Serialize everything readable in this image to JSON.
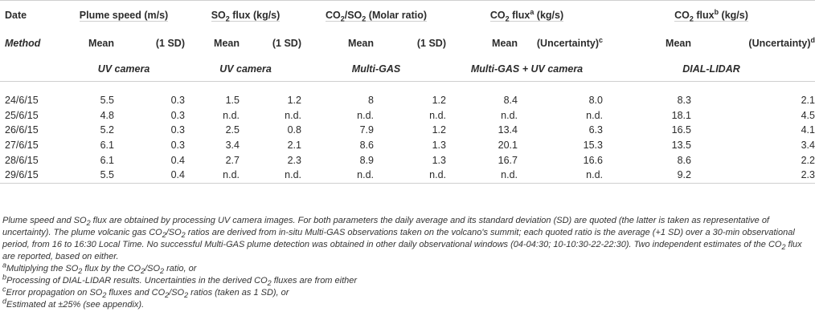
{
  "header": {
    "date": "Date",
    "method": "Method",
    "plume_speed": "Plume speed (m/s)",
    "so2_flux_a": "SO",
    "so2_flux_sub": "2",
    "so2_flux_b": " flux (kg/s)",
    "ratio_a": "CO",
    "ratio_sub1": "2",
    "ratio_b": "/SO",
    "ratio_sub2": "2",
    "ratio_c": " (Molar ratio)",
    "co2a_a": "CO",
    "co2a_sub": "2",
    "co2a_b": " flux",
    "co2a_sup": "a",
    "co2a_c": " (kg/s)",
    "co2b_a": "CO",
    "co2b_sub": "2",
    "co2b_b": " flux",
    "co2b_sup": "b",
    "co2b_c": " (kg/s)",
    "mean": "Mean",
    "sd": "(1 SD)",
    "uncertainty": "(Uncertainty)",
    "unc_sup_c": "c",
    "unc_sup_d": "d",
    "uv_camera": "UV camera",
    "multigas": "Multi-GAS",
    "multigas_uv": "Multi-GAS + UV camera",
    "dial_lidar": "DIAL-LIDAR"
  },
  "rows": [
    [
      "24/6/15",
      "5.5",
      "0.3",
      "1.5",
      "1.2",
      "8",
      "1.2",
      "8.4",
      "8.0",
      "8.3",
      "2.1"
    ],
    [
      "25/6/15",
      "4.8",
      "0.3",
      "n.d.",
      "n.d.",
      "n.d.",
      "n.d.",
      "n.d.",
      "n.d.",
      "18.1",
      "4.5"
    ],
    [
      "26/6/15",
      "5.2",
      "0.3",
      "2.5",
      "0.8",
      "7.9",
      "1.2",
      "13.4",
      "6.3",
      "16.5",
      "4.1"
    ],
    [
      "27/6/15",
      "6.1",
      "0.3",
      "3.4",
      "2.1",
      "8.6",
      "1.3",
      "20.1",
      "15.3",
      "13.5",
      "3.4"
    ],
    [
      "28/6/15",
      "6.1",
      "0.4",
      "2.7",
      "2.3",
      "8.9",
      "1.3",
      "16.7",
      "16.6",
      "8.6",
      "2.2"
    ],
    [
      "29/6/15",
      "5.5",
      "0.4",
      "n.d.",
      "n.d.",
      "n.d.",
      "n.d.",
      "n.d.",
      "n.d.",
      "9.2",
      "2.3"
    ]
  ],
  "notes": {
    "p1_a": "Plume speed and SO",
    "p1_sub1": "2",
    "p1_b": " flux are obtained by processing UV camera images. For both parameters the daily average and its standard deviation (SD) are quoted (the latter is taken as representative of uncertainty). The plume volcanic gas CO",
    "p1_sub2": "2",
    "p1_c": "/SO",
    "p1_sub3": "2",
    "p1_d": " ratios are derived from in-situ Multi-GAS observations taken on the volcano's summit; each quoted ratio is the average (+1 SD) over a 30-min observational period, from 16 to 16:30 Local Time. No successful Multi-GAS plume detection was obtained in other daily observational windows (04-04:30; 10-10:30-22-22:30). Two independent estimates of the CO",
    "p1_sub4": "2",
    "p1_e": " flux are reported, based on either.",
    "na_sup": "a",
    "na_a": "Multiplying the SO",
    "na_sub1": "2",
    "na_b": " flux by the CO",
    "na_sub2": "2",
    "na_c": "/SO",
    "na_sub3": "2",
    "na_d": " ratio, or",
    "nb_sup": "b",
    "nb_a": "Processing of DIAL-LIDAR results. Uncertainties in the derived CO",
    "nb_sub": "2",
    "nb_b": " fluxes are from either",
    "nc_sup": "c",
    "nc_a": "Error propagation on SO",
    "nc_sub1": "2",
    "nc_b": " fluxes and CO",
    "nc_sub2": "2",
    "nc_c": "/SO",
    "nc_sub3": "2",
    "nc_d": " ratios (taken as 1 SD), or",
    "nd_sup": "d",
    "nd_a": "Estimated at ±25% (see appendix)."
  }
}
